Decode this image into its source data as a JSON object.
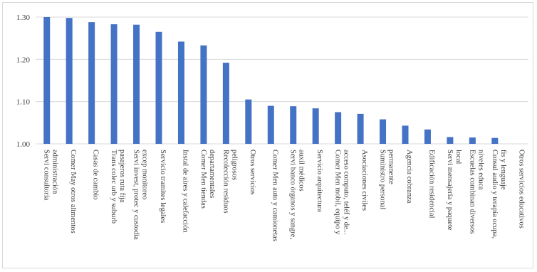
{
  "chart_data": {
    "type": "bar",
    "title": "",
    "xlabel": "",
    "ylabel": "",
    "ylim": [
      1.0,
      1.3
    ],
    "yticks": [
      "1.00",
      "1.10",
      "1.20",
      "1.30"
    ],
    "ytick_values": [
      1.0,
      1.1,
      1.2,
      1.3
    ],
    "grid": true,
    "legend": "none",
    "bar_color": "#4472C4",
    "grid_color": "#d9d9d9",
    "categories": [
      [
        "Servi consultoría",
        "administración"
      ],
      [
        "Comer May otros alimentos"
      ],
      [
        "Casas de cambio"
      ],
      [
        "Trans colec urb y suburb",
        "pasajeros ruta fija"
      ],
      [
        "Servi invest, protec y custodia",
        "excep monitoreo"
      ],
      [
        "Servicio tramites legales"
      ],
      [
        "Instal de aires y calefacción"
      ],
      [
        "Comer Men tiendas",
        "departamentales"
      ],
      [
        "Recolección residuos",
        "peligrosos"
      ],
      [
        "Otros servicios"
      ],
      [
        "Comer Men auto y camionetas"
      ],
      [
        "Servi banco órganos y sangre,",
        "auxil médicos"
      ],
      [
        "Servicio arquitectura"
      ],
      [
        "Comer Men mobil, equipo y",
        "acceso computo, teléf y de..."
      ],
      [
        "Asociaciones civiles"
      ],
      [
        "Suministro personal",
        "permanente"
      ],
      [
        "Agencia cobranza"
      ],
      [
        "Edificación residencial"
      ],
      [
        "Servi mensajería y paquete",
        "local"
      ],
      [
        "Escuelas combinan diversos",
        "niveles educa"
      ],
      [
        "Consul audio y terapia ocupa,",
        "fis y lenguaje"
      ],
      [
        "Otros servicios educativos"
      ]
    ],
    "values": [
      1.3,
      1.298,
      1.288,
      1.283,
      1.282,
      1.265,
      1.242,
      1.233,
      1.192,
      1.105,
      1.09,
      1.089,
      1.084,
      1.075,
      1.071,
      1.058,
      1.043,
      1.034,
      1.016,
      1.015,
      1.014,
      1.0
    ]
  }
}
